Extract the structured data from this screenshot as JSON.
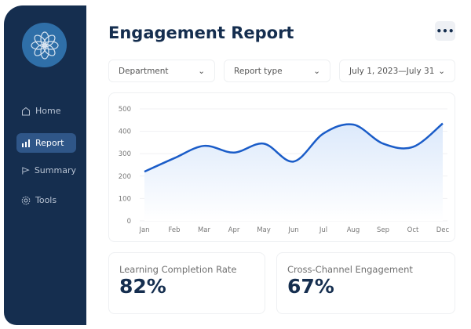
{
  "sidebar": {
    "logo": "flower-logo",
    "items": [
      {
        "label": "Home",
        "icon": "home-icon",
        "active": false
      },
      {
        "label": "Report",
        "icon": "bar-chart-icon",
        "active": true
      },
      {
        "label": "Summary",
        "icon": "flag-icon",
        "active": false
      },
      {
        "label": "Tools",
        "icon": "gear-icon",
        "active": false
      }
    ]
  },
  "header": {
    "title": "Engagement Report",
    "more_icon": "more-horizontal-icon",
    "more_label": "•••"
  },
  "filters": [
    {
      "label": "Department"
    },
    {
      "label": "Report type"
    },
    {
      "label": "July 1, 2023—July 31"
    }
  ],
  "chart_data": {
    "type": "area",
    "categories": [
      "Jan",
      "Feb",
      "Mar",
      "Apr",
      "May",
      "Jun",
      "Jul",
      "Aug",
      "Sep",
      "Oct",
      "Dec"
    ],
    "series": [
      {
        "values": [
          220,
          280,
          335,
          305,
          345,
          265,
          390,
          430,
          345,
          330,
          435
        ]
      }
    ],
    "yticks": [
      0,
      100,
      200,
      300,
      400,
      500
    ],
    "ylim": [
      0,
      500
    ],
    "grid": true,
    "line_color": "#1a5cc8",
    "fill_color": "#dce9fb"
  },
  "kpis": [
    {
      "label": "Learning Completion Rate",
      "value": "82%"
    },
    {
      "label": "Cross-Channel Engagement",
      "value": "67%"
    }
  ],
  "colors": {
    "sidebar": "#152e4f",
    "accent": "#2f6fa8",
    "active": "#2f5688"
  }
}
